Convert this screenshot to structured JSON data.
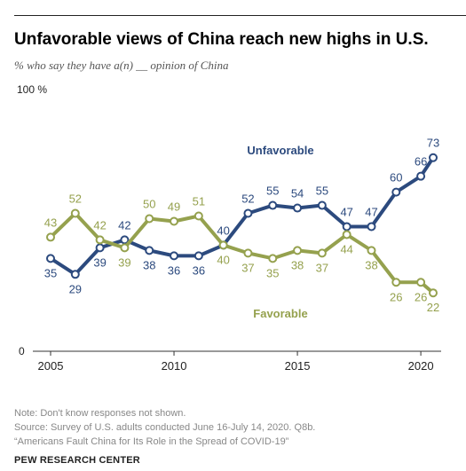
{
  "header": {
    "title": "Unfavorable views of China reach new highs in U.S.",
    "subtitle": "% who say they have a(n) __ opinion of China"
  },
  "chart_data": {
    "type": "line",
    "y_max_label": "100 %",
    "y_zero_label": "0",
    "ylim": [
      0,
      100
    ],
    "xlim": [
      2005,
      2020.5
    ],
    "x_ticks": [
      {
        "value": 2005,
        "label": "2005"
      },
      {
        "value": 2010,
        "label": "2010"
      },
      {
        "value": 2015,
        "label": "2015"
      },
      {
        "value": 2020,
        "label": "2020"
      }
    ],
    "series": [
      {
        "name": "Unfavorable",
        "color": "#2c4a7e",
        "points": [
          {
            "x": 2005,
            "y": 35
          },
          {
            "x": 2006,
            "y": 29
          },
          {
            "x": 2007,
            "y": 39
          },
          {
            "x": 2008,
            "y": 42
          },
          {
            "x": 2009,
            "y": 38
          },
          {
            "x": 2010,
            "y": 36
          },
          {
            "x": 2011,
            "y": 36
          },
          {
            "x": 2012,
            "y": 40
          },
          {
            "x": 2013,
            "y": 52
          },
          {
            "x": 2014,
            "y": 55
          },
          {
            "x": 2015,
            "y": 54
          },
          {
            "x": 2016,
            "y": 55
          },
          {
            "x": 2017,
            "y": 47
          },
          {
            "x": 2018,
            "y": 47
          },
          {
            "x": 2019,
            "y": 60
          },
          {
            "x": 2020,
            "y": 66
          },
          {
            "x": 2020.5,
            "y": 73
          }
        ]
      },
      {
        "name": "Favorable",
        "color": "#95a14e",
        "points": [
          {
            "x": 2005,
            "y": 43
          },
          {
            "x": 2006,
            "y": 52
          },
          {
            "x": 2007,
            "y": 42
          },
          {
            "x": 2008,
            "y": 39
          },
          {
            "x": 2009,
            "y": 50
          },
          {
            "x": 2010,
            "y": 49
          },
          {
            "x": 2011,
            "y": 51
          },
          {
            "x": 2012,
            "y": 40
          },
          {
            "x": 2013,
            "y": 37
          },
          {
            "x": 2014,
            "y": 35
          },
          {
            "x": 2015,
            "y": 38
          },
          {
            "x": 2016,
            "y": 37
          },
          {
            "x": 2017,
            "y": 44
          },
          {
            "x": 2018,
            "y": 38
          },
          {
            "x": 2019,
            "y": 26
          },
          {
            "x": 2020,
            "y": 26
          },
          {
            "x": 2020.5,
            "y": 22
          }
        ]
      }
    ]
  },
  "footer": {
    "note": "Note: Don't know responses not shown.",
    "source": "Source: Survey of U.S. adults conducted June 16-July 14, 2020. Q8b.",
    "report": "“Americans Fault China for Its Role in the Spread of COVID-19”",
    "org": "PEW RESEARCH CENTER"
  }
}
